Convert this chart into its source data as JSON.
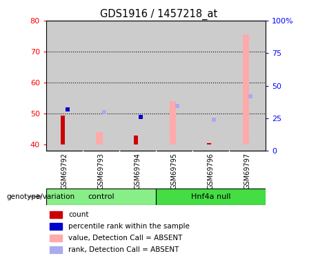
{
  "title": "GDS1916 / 1457218_at",
  "samples": [
    "GSM69792",
    "GSM69793",
    "GSM69794",
    "GSM69795",
    "GSM69796",
    "GSM69797"
  ],
  "ylim_left": [
    38,
    80
  ],
  "ylim_right": [
    0,
    100
  ],
  "yticks_left": [
    40,
    50,
    60,
    70,
    80
  ],
  "yticks_right": [
    0,
    25,
    50,
    75,
    100
  ],
  "ytick_labels_left": [
    "40",
    "50",
    "60",
    "70",
    "80"
  ],
  "ytick_labels_right": [
    "0",
    "25",
    "50",
    "75",
    "100%"
  ],
  "dotted_yticks": [
    50,
    60,
    70
  ],
  "bar_bottom": 40,
  "count_values": [
    49.5,
    null,
    43.0,
    null,
    40.5,
    null
  ],
  "count_color": "#cc0000",
  "percentile_values": [
    51.5,
    null,
    49.0,
    null,
    null,
    null
  ],
  "percentile_color": "#0000cc",
  "value_absent_values": [
    null,
    44.0,
    null,
    54.0,
    40.5,
    75.5
  ],
  "value_absent_color": "#ffaaaa",
  "rank_absent_values": [
    null,
    50.5,
    null,
    52.5,
    48.0,
    55.5
  ],
  "rank_absent_color": "#aaaaee",
  "count_bar_width": 0.12,
  "value_absent_bar_width": 0.18,
  "sample_bg_color": "#cccccc",
  "control_color": "#88ee88",
  "hnf_color": "#44dd44",
  "legend_items": [
    {
      "label": "count",
      "color": "#cc0000"
    },
    {
      "label": "percentile rank within the sample",
      "color": "#0000cc"
    },
    {
      "label": "value, Detection Call = ABSENT",
      "color": "#ffaaaa"
    },
    {
      "label": "rank, Detection Call = ABSENT",
      "color": "#aaaaee"
    }
  ]
}
